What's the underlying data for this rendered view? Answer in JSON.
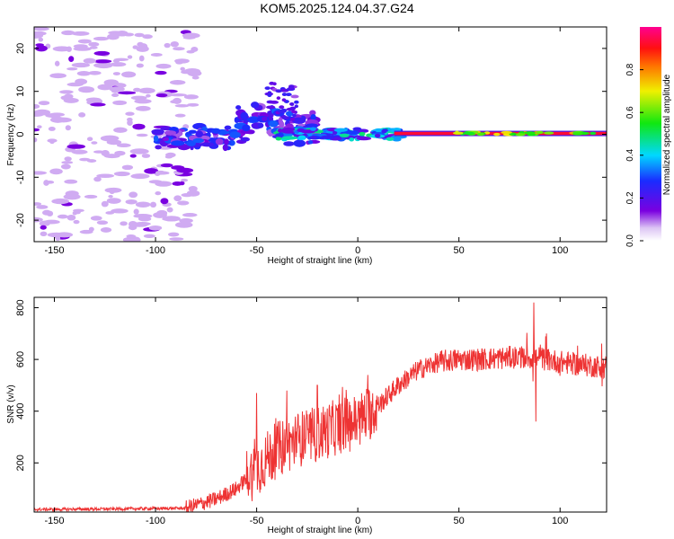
{
  "title": "KOM5.2025.124.04.37.G24",
  "chart_data": [
    {
      "type": "heatmap",
      "xlabel": "Height of straight line (km)",
      "ylabel": "Frequency (Hz)",
      "xlim": [
        -160,
        123
      ],
      "ylim": [
        -25,
        25
      ],
      "xticks": [
        -150,
        -100,
        -50,
        0,
        50,
        100
      ],
      "yticks": [
        -20,
        -10,
        0,
        10,
        20
      ],
      "colorbar": {
        "label": "Normalized spectral amplitude",
        "range": [
          0,
          1
        ],
        "ticks": [
          0.0,
          0.2,
          0.4,
          0.6,
          0.8
        ],
        "tick_labels": [
          "0.0",
          "0.2",
          "0.4",
          "0.6",
          "0.8"
        ],
        "colormap": "rainbow (white → violet → blue → cyan → green → yellow → red → magenta)"
      },
      "features": [
        {
          "description": "scattered weak noise patches",
          "x_range": [
            -160,
            -80
          ],
          "freq_range": [
            -25,
            25
          ],
          "amplitude": 0.05
        },
        {
          "description": "signal onset, clustered",
          "x_range": [
            -100,
            -20
          ],
          "freq_range": [
            -5,
            10
          ],
          "amplitude": 0.2
        },
        {
          "description": "band near 0 Hz",
          "x_range": [
            -20,
            20
          ],
          "freq_range": [
            -2,
            2
          ],
          "amplitude": 0.4
        },
        {
          "description": "strong carrier line at 0 Hz",
          "x_range": [
            18,
            123
          ],
          "freq_range": [
            -1,
            1
          ],
          "amplitude": 0.95
        }
      ]
    },
    {
      "type": "line",
      "xlabel": "Height of straight line (km)",
      "ylabel": "SNR (v/v)",
      "xlim": [
        -160,
        123
      ],
      "ylim": [
        10,
        840
      ],
      "xticks": [
        -150,
        -100,
        -50,
        0,
        50,
        100
      ],
      "yticks": [
        200,
        400,
        600,
        800
      ],
      "series_color": "#ee3333",
      "trend": {
        "x": [
          -160,
          -120,
          -85,
          -70,
          -60,
          -50,
          -40,
          -30,
          -20,
          -10,
          0,
          10,
          20,
          30,
          40,
          50,
          60,
          70,
          80,
          90,
          100,
          110,
          123
        ],
        "y": [
          20,
          22,
          25,
          60,
          100,
          180,
          250,
          290,
          310,
          340,
          360,
          420,
          500,
          560,
          590,
          600,
          600,
          605,
          610,
          605,
          590,
          580,
          570
        ]
      },
      "spikes": [
        {
          "x": -50,
          "y": 470
        },
        {
          "x": -35,
          "y": 480
        },
        {
          "x": -20,
          "y": 500
        },
        {
          "x": 5,
          "y": 540
        },
        {
          "x": 87,
          "y": 820
        },
        {
          "x": 88,
          "y": 360
        }
      ]
    }
  ]
}
